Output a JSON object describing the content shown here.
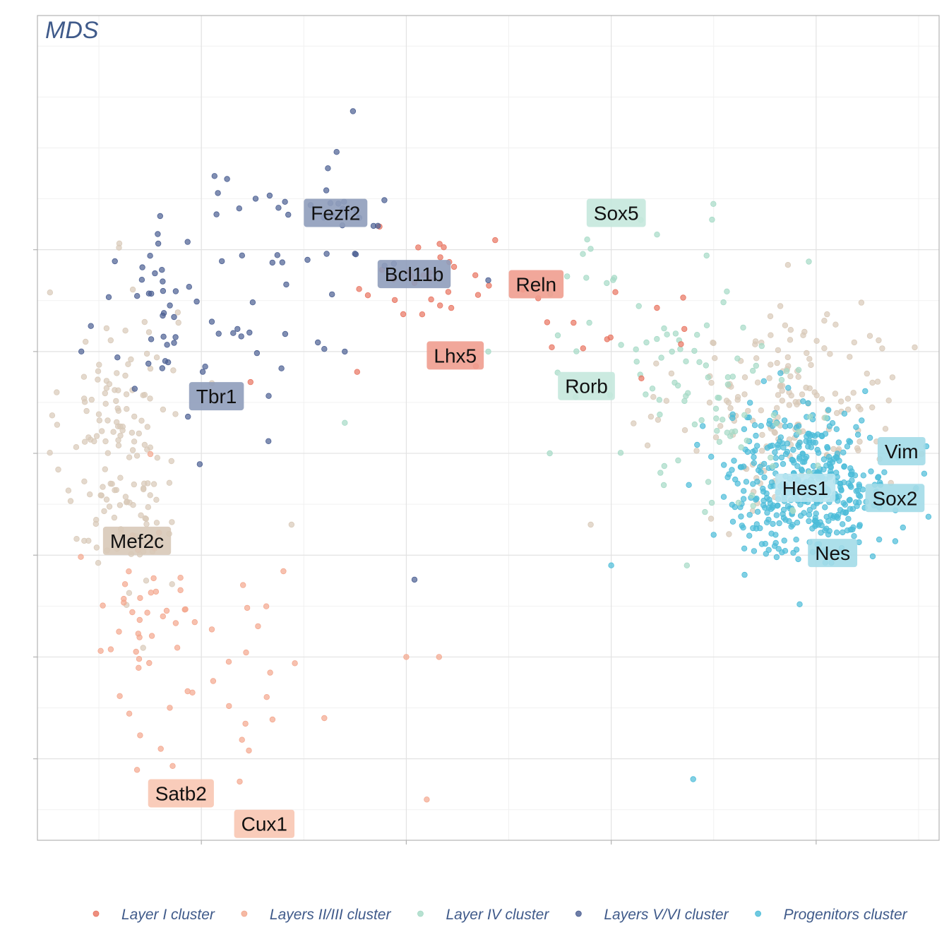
{
  "chart_data": {
    "type": "scatter",
    "title": "MDS",
    "xlabel": "",
    "ylabel": "",
    "xlim": [
      -0.4,
      1.8
    ],
    "ylim": [
      -1.9,
      2.15
    ],
    "x_major_ticks": [
      0.0,
      0.5,
      1.0,
      1.5
    ],
    "y_major_ticks": [
      -1.5,
      -1.0,
      -0.5,
      0.0,
      0.5,
      1.0
    ],
    "grid": true,
    "legend_position": "bottom",
    "series": [
      {
        "name": "Layer I cluster",
        "color": "#e8735f",
        "clusters": [
          {
            "cx": 0.55,
            "cy": 0.82,
            "sx": 0.09,
            "sy": 0.12,
            "n": 30
          },
          {
            "cx": 0.95,
            "cy": 0.6,
            "sx": 0.15,
            "sy": 0.15,
            "n": 14
          }
        ],
        "points": [
          [
            0.12,
            0.35
          ],
          [
            0.38,
            0.4
          ]
        ]
      },
      {
        "name": "Layers II/III cluster",
        "color": "#f3a78d",
        "clusters": [
          {
            "cx": -0.15,
            "cy": -0.85,
            "sx": 0.07,
            "sy": 0.3,
            "n": 40
          },
          {
            "cx": 0.1,
            "cy": -1.05,
            "sx": 0.09,
            "sy": 0.3,
            "n": 26
          }
        ],
        "points": [
          [
            0.3,
            -1.3
          ],
          [
            0.5,
            -1.0
          ],
          [
            0.58,
            -1.0
          ],
          [
            0.55,
            -1.7
          ],
          [
            0.38,
            -1.95
          ]
        ]
      },
      {
        "name": "Layer IV cluster",
        "color": "#a5dac6",
        "clusters": [
          {
            "cx": 1.1,
            "cy": 0.65,
            "sx": 0.17,
            "sy": 0.28,
            "n": 48
          },
          {
            "cx": 1.3,
            "cy": 0.15,
            "sx": 0.12,
            "sy": 0.25,
            "n": 55
          }
        ],
        "points": [
          [
            0.35,
            0.15
          ],
          [
            0.7,
            0.5
          ],
          [
            0.85,
            0.0
          ]
        ]
      },
      {
        "name": "Layers V/VI cluster",
        "color": "#4a5e91",
        "clusters": [
          {
            "cx": -0.05,
            "cy": 0.7,
            "sx": 0.12,
            "sy": 0.28,
            "n": 62
          },
          {
            "cx": 0.3,
            "cy": 1.05,
            "sx": 0.14,
            "sy": 0.18,
            "n": 30
          }
        ],
        "points": [
          [
            0.37,
            1.68
          ],
          [
            0.33,
            1.48
          ],
          [
            0.52,
            -0.62
          ],
          [
            0.35,
            0.5
          ],
          [
            0.7,
            0.85
          ]
        ]
      },
      {
        "name": "Progenitors cluster",
        "color": "#4bbcd8",
        "clusters": [
          {
            "cx": 1.48,
            "cy": -0.15,
            "sx": 0.1,
            "sy": 0.18,
            "n": 430
          }
        ],
        "points": [
          [
            1.2,
            -1.6
          ],
          [
            1.25,
            -0.4
          ],
          [
            1.0,
            -0.55
          ]
        ]
      },
      {
        "name": "",
        "color": "#d8c9b8",
        "clusters": [
          {
            "cx": -0.2,
            "cy": 0.05,
            "sx": 0.07,
            "sy": 0.38,
            "n": 150
          },
          {
            "cx": 1.45,
            "cy": 0.25,
            "sx": 0.14,
            "sy": 0.25,
            "n": 170
          }
        ],
        "points": [
          [
            0.22,
            -0.35
          ],
          [
            0.95,
            -0.35
          ]
        ]
      }
    ],
    "annotations": [
      {
        "text": "Fezf2",
        "x": 0.25,
        "y": 1.25,
        "color": "#8f9dbb"
      },
      {
        "text": "Bcl11b",
        "x": 0.43,
        "y": 0.95,
        "color": "#8f9dbb"
      },
      {
        "text": "Tbr1",
        "x": -0.03,
        "y": 0.35,
        "color": "#8f9dbb"
      },
      {
        "text": "Sox5",
        "x": 0.94,
        "y": 1.25,
        "color": "#c5e8dd"
      },
      {
        "text": "Reln",
        "x": 0.75,
        "y": 0.9,
        "color": "#f09d8f"
      },
      {
        "text": "Lhx5",
        "x": 0.55,
        "y": 0.55,
        "color": "#f09d8f"
      },
      {
        "text": "Rorb",
        "x": 0.87,
        "y": 0.4,
        "color": "#c5e8dd"
      },
      {
        "text": "Vim",
        "x": 1.65,
        "y": 0.08,
        "color": "#a3dbe8"
      },
      {
        "text": "Hes1",
        "x": 1.4,
        "y": -0.1,
        "color": "#b8e4f0"
      },
      {
        "text": "Sox2",
        "x": 1.62,
        "y": -0.15,
        "color": "#a3dbe8"
      },
      {
        "text": "Nes",
        "x": 1.48,
        "y": -0.42,
        "color": "#a3dbe8"
      },
      {
        "text": "Mef2c",
        "x": -0.24,
        "y": -0.36,
        "color": "#d8c9b8"
      },
      {
        "text": "Satb2",
        "x": -0.13,
        "y": -1.6,
        "color": "#f8c7b3"
      },
      {
        "text": "Cux1",
        "x": 0.08,
        "y": -1.75,
        "color": "#f8c7b3"
      }
    ]
  }
}
